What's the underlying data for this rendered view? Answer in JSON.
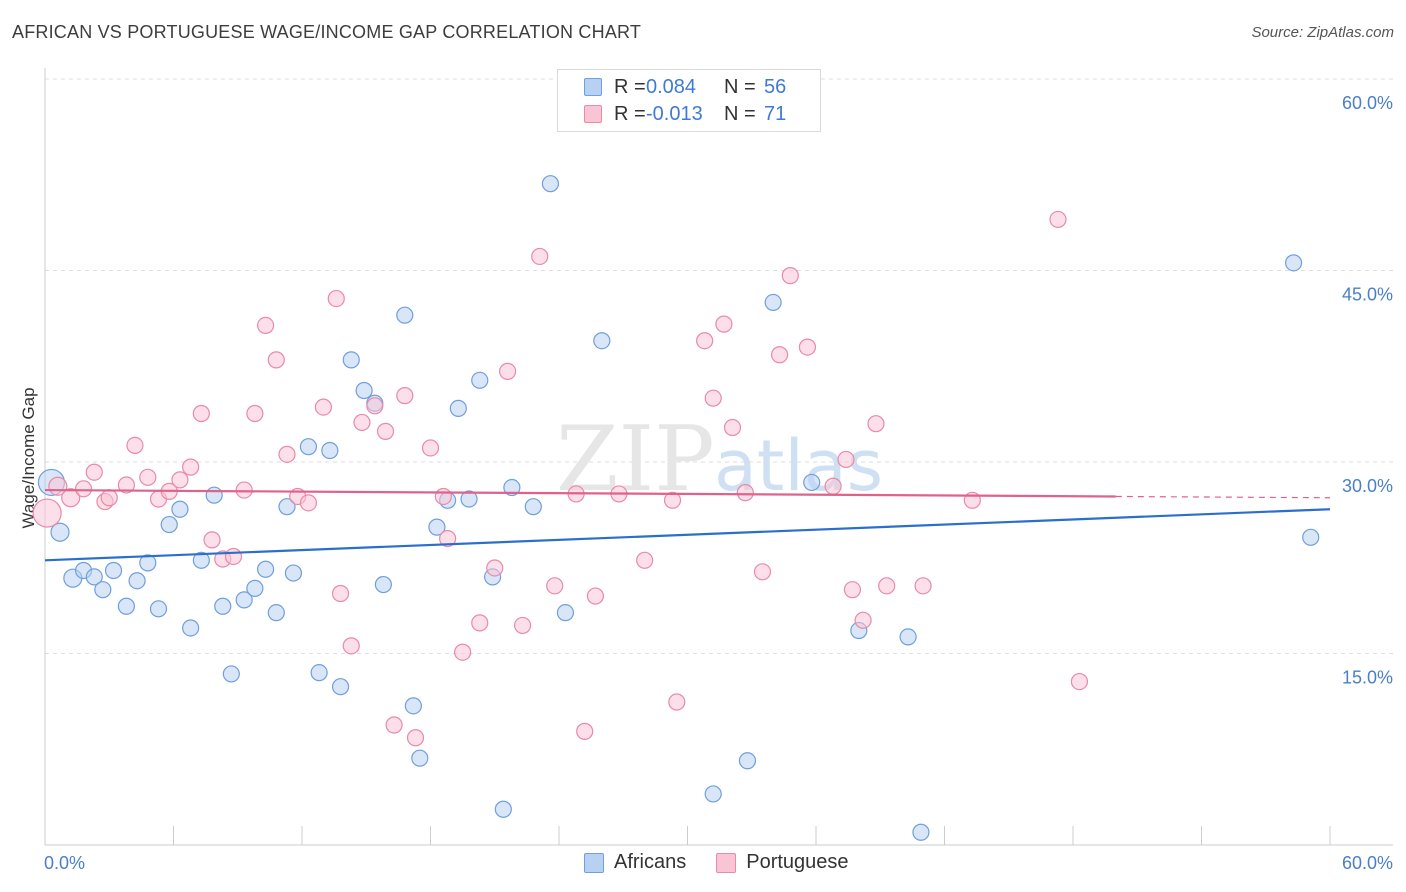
{
  "title": "AFRICAN VS PORTUGUESE WAGE/INCOME GAP CORRELATION CHART",
  "source": "Source: ZipAtlas.com",
  "watermark": {
    "zip": "ZIP",
    "atlas": "atlas"
  },
  "legend": {
    "rows": [
      {
        "r_label": "R =",
        "r_value": "0.084",
        "n_label": "N =",
        "n_value": "56"
      },
      {
        "r_label": "R =",
        "r_value": "-0.013",
        "n_label": "N =",
        "n_value": "71"
      }
    ]
  },
  "bottom_legend": {
    "africans": "Africans",
    "portuguese": "Portuguese"
  },
  "colors": {
    "africans_fill": "#b8d1f2",
    "africans_stroke": "#6f9fdc",
    "africans_line": "#2a6fcf",
    "portuguese_fill": "#f9c5d5",
    "portuguese_stroke": "#e88aa8",
    "portuguese_line": "#e0628b",
    "grid": "#dddddd",
    "axis": "#cccccc",
    "tick_text": "#4a7fc8"
  },
  "chart_data": {
    "type": "scatter",
    "title": "AFRICAN VS PORTUGUESE WAGE/INCOME GAP CORRELATION CHART",
    "xlabel": "",
    "ylabel": "Wage/Income Gap",
    "xlim": [
      0,
      60
    ],
    "ylim": [
      0,
      60
    ],
    "x_tick_labels": [
      "0.0%",
      "60.0%"
    ],
    "y_ticks": [
      15,
      30,
      45,
      60
    ],
    "y_tick_labels": [
      "15.0%",
      "30.0%",
      "45.0%",
      "60.0%"
    ],
    "series": [
      {
        "name": "Africans",
        "r": 0.084,
        "n": 56,
        "trend": {
          "x": [
            0,
            60
          ],
          "y": [
            22.3,
            26.3
          ]
        },
        "points": [
          [
            0.3,
            28.4,
            26
          ],
          [
            0.7,
            24.5,
            18
          ],
          [
            1.3,
            20.9,
            18
          ],
          [
            1.8,
            21.5,
            16
          ],
          [
            2.3,
            21.0,
            16
          ],
          [
            2.7,
            20.0,
            16
          ],
          [
            3.2,
            21.5,
            16
          ],
          [
            3.8,
            18.7,
            16
          ],
          [
            4.3,
            20.7,
            16
          ],
          [
            4.8,
            22.1,
            16
          ],
          [
            5.3,
            18.5,
            16
          ],
          [
            5.8,
            25.1,
            16
          ],
          [
            6.3,
            26.3,
            16
          ],
          [
            6.8,
            17.0,
            16
          ],
          [
            7.3,
            22.3,
            16
          ],
          [
            7.9,
            27.4,
            16
          ],
          [
            8.3,
            18.7,
            16
          ],
          [
            8.7,
            13.4,
            16
          ],
          [
            9.3,
            19.2,
            16
          ],
          [
            9.8,
            20.1,
            16
          ],
          [
            10.3,
            21.6,
            16
          ],
          [
            10.8,
            18.2,
            16
          ],
          [
            11.3,
            26.5,
            16
          ],
          [
            11.6,
            21.3,
            16
          ],
          [
            12.3,
            31.2,
            16
          ],
          [
            12.8,
            13.5,
            16
          ],
          [
            13.3,
            30.9,
            16
          ],
          [
            13.8,
            12.4,
            16
          ],
          [
            14.3,
            38.0,
            16
          ],
          [
            14.9,
            35.6,
            16
          ],
          [
            15.4,
            34.6,
            16
          ],
          [
            15.8,
            20.4,
            16
          ],
          [
            16.8,
            41.5,
            16
          ],
          [
            17.2,
            10.9,
            16
          ],
          [
            17.5,
            6.8,
            16
          ],
          [
            18.3,
            24.9,
            16
          ],
          [
            18.8,
            27.0,
            16
          ],
          [
            19.3,
            34.2,
            16
          ],
          [
            19.8,
            27.1,
            16
          ],
          [
            20.3,
            36.4,
            16
          ],
          [
            20.9,
            21.0,
            16
          ],
          [
            21.4,
            2.8,
            16
          ],
          [
            21.8,
            28.0,
            16
          ],
          [
            22.8,
            26.5,
            16
          ],
          [
            23.6,
            51.8,
            16
          ],
          [
            24.3,
            18.2,
            16
          ],
          [
            26.0,
            39.5,
            16
          ],
          [
            31.2,
            4.0,
            16
          ],
          [
            32.8,
            6.6,
            16
          ],
          [
            34.0,
            42.5,
            16
          ],
          [
            35.8,
            28.4,
            16
          ],
          [
            38.0,
            16.8,
            16
          ],
          [
            40.3,
            16.3,
            16
          ],
          [
            40.9,
            1.0,
            16
          ],
          [
            58.3,
            45.6,
            16
          ],
          [
            59.1,
            24.1,
            16
          ]
        ]
      },
      {
        "name": "Portuguese",
        "r": -0.013,
        "n": 71,
        "trend": {
          "x": [
            0,
            50
          ],
          "y": [
            27.8,
            27.3
          ]
        },
        "trend_dashed": {
          "x": [
            50,
            60
          ],
          "y": [
            27.3,
            27.2
          ]
        },
        "points": [
          [
            0.1,
            26.0,
            28
          ],
          [
            0.6,
            28.1,
            18
          ],
          [
            1.2,
            27.2,
            18
          ],
          [
            1.8,
            27.9,
            16
          ],
          [
            2.3,
            29.2,
            16
          ],
          [
            2.8,
            26.9,
            16
          ],
          [
            3.0,
            27.2,
            16
          ],
          [
            3.8,
            28.2,
            16
          ],
          [
            4.2,
            31.3,
            16
          ],
          [
            4.8,
            28.8,
            16
          ],
          [
            5.3,
            27.1,
            16
          ],
          [
            5.8,
            27.7,
            16
          ],
          [
            6.3,
            28.6,
            16
          ],
          [
            6.8,
            29.6,
            16
          ],
          [
            7.3,
            33.8,
            16
          ],
          [
            7.8,
            23.9,
            16
          ],
          [
            8.3,
            22.4,
            16
          ],
          [
            8.8,
            22.6,
            16
          ],
          [
            9.3,
            27.8,
            16
          ],
          [
            9.8,
            33.8,
            16
          ],
          [
            10.3,
            40.7,
            16
          ],
          [
            10.8,
            38.0,
            16
          ],
          [
            11.3,
            30.6,
            16
          ],
          [
            11.8,
            27.3,
            16
          ],
          [
            12.3,
            26.8,
            16
          ],
          [
            13.0,
            34.3,
            16
          ],
          [
            13.6,
            42.8,
            16
          ],
          [
            13.8,
            19.7,
            16
          ],
          [
            14.3,
            15.6,
            16
          ],
          [
            14.8,
            33.1,
            16
          ],
          [
            15.4,
            34.4,
            16
          ],
          [
            15.9,
            32.4,
            16
          ],
          [
            16.3,
            9.4,
            16
          ],
          [
            16.8,
            35.2,
            16
          ],
          [
            17.3,
            8.4,
            16
          ],
          [
            18.0,
            31.1,
            16
          ],
          [
            18.6,
            27.3,
            16
          ],
          [
            18.8,
            24.0,
            16
          ],
          [
            19.5,
            15.1,
            16
          ],
          [
            20.3,
            17.4,
            16
          ],
          [
            21.0,
            21.7,
            16
          ],
          [
            21.6,
            37.1,
            16
          ],
          [
            22.3,
            17.2,
            16
          ],
          [
            23.1,
            46.1,
            16
          ],
          [
            23.8,
            20.3,
            16
          ],
          [
            24.8,
            27.5,
            16
          ],
          [
            25.2,
            8.9,
            16
          ],
          [
            25.7,
            19.5,
            16
          ],
          [
            26.8,
            27.5,
            16
          ],
          [
            28.0,
            22.3,
            16
          ],
          [
            29.3,
            27.0,
            16
          ],
          [
            29.5,
            11.2,
            16
          ],
          [
            30.8,
            39.5,
            16
          ],
          [
            31.2,
            35.0,
            16
          ],
          [
            31.7,
            40.8,
            16
          ],
          [
            32.1,
            32.7,
            16
          ],
          [
            32.7,
            27.6,
            16
          ],
          [
            33.5,
            21.4,
            16
          ],
          [
            34.3,
            38.4,
            16
          ],
          [
            34.8,
            44.6,
            16
          ],
          [
            35.6,
            39.0,
            16
          ],
          [
            36.8,
            28.1,
            16
          ],
          [
            37.4,
            30.2,
            16
          ],
          [
            37.7,
            20.0,
            16
          ],
          [
            38.2,
            17.6,
            16
          ],
          [
            38.8,
            33.0,
            16
          ],
          [
            39.3,
            20.3,
            16
          ],
          [
            41.0,
            20.3,
            16
          ],
          [
            43.3,
            27.0,
            16
          ],
          [
            47.3,
            49.0,
            16
          ],
          [
            48.3,
            12.8,
            16
          ]
        ]
      }
    ]
  }
}
